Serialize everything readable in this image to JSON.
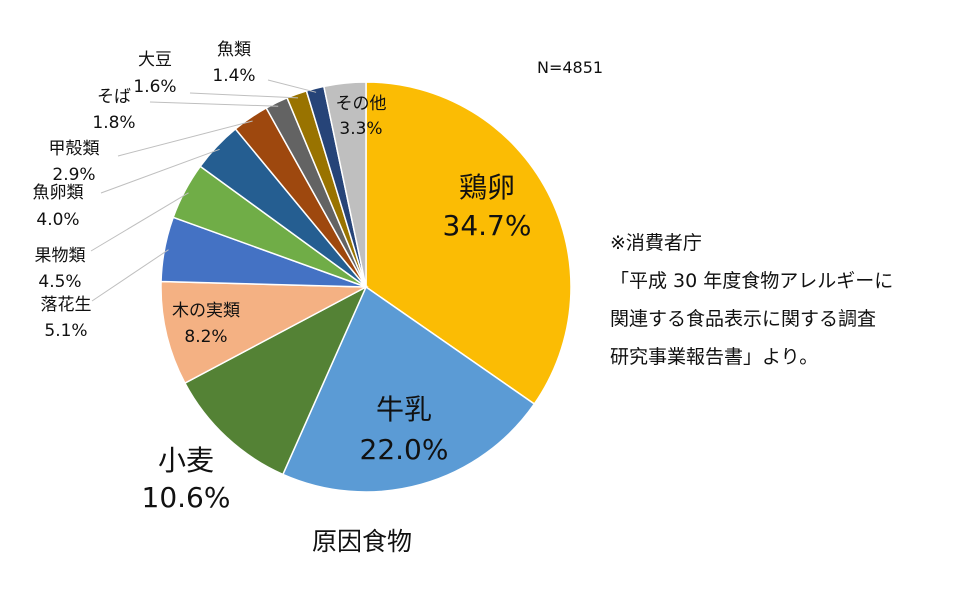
{
  "chart_data": {
    "type": "pie",
    "title": "原因食物",
    "sample_size": "N=4851",
    "slices": [
      {
        "label": "鶏卵",
        "value": 34.7,
        "value_text": "34.7%",
        "color": "#FBBC04"
      },
      {
        "label": "牛乳",
        "value": 22.0,
        "value_text": "22.0%",
        "color": "#5B9BD5"
      },
      {
        "label": "小麦",
        "value": 10.6,
        "value_text": "10.6%",
        "color": "#548235"
      },
      {
        "label": "木の実類",
        "value": 8.2,
        "value_text": "8.2%",
        "color": "#F4B183"
      },
      {
        "label": "落花生",
        "value": 5.1,
        "value_text": "5.1%",
        "color": "#4472C4"
      },
      {
        "label": "果物類",
        "value": 4.5,
        "value_text": "4.5%",
        "color": "#70AD47"
      },
      {
        "label": "魚卵類",
        "value": 4.0,
        "value_text": "4.0%",
        "color": "#255E91"
      },
      {
        "label": "甲殻類",
        "value": 2.9,
        "value_text": "2.9%",
        "color": "#9E480E"
      },
      {
        "label": "そば",
        "value": 1.8,
        "value_text": "1.8%",
        "color": "#636363"
      },
      {
        "label": "大豆",
        "value": 1.6,
        "value_text": "1.6%",
        "color": "#997300"
      },
      {
        "label": "魚類",
        "value": 1.4,
        "value_text": "1.4%",
        "color": "#264478"
      },
      {
        "label": "その他",
        "value": 3.3,
        "value_text": "3.3%",
        "color": "#BFBFBF"
      }
    ]
  },
  "source_note": {
    "lines": [
      "※消費者庁",
      "「平成 30 年度食物アレルギーに",
      "関連する食品表示に関する調査",
      "研究事業報告書」より。"
    ]
  }
}
